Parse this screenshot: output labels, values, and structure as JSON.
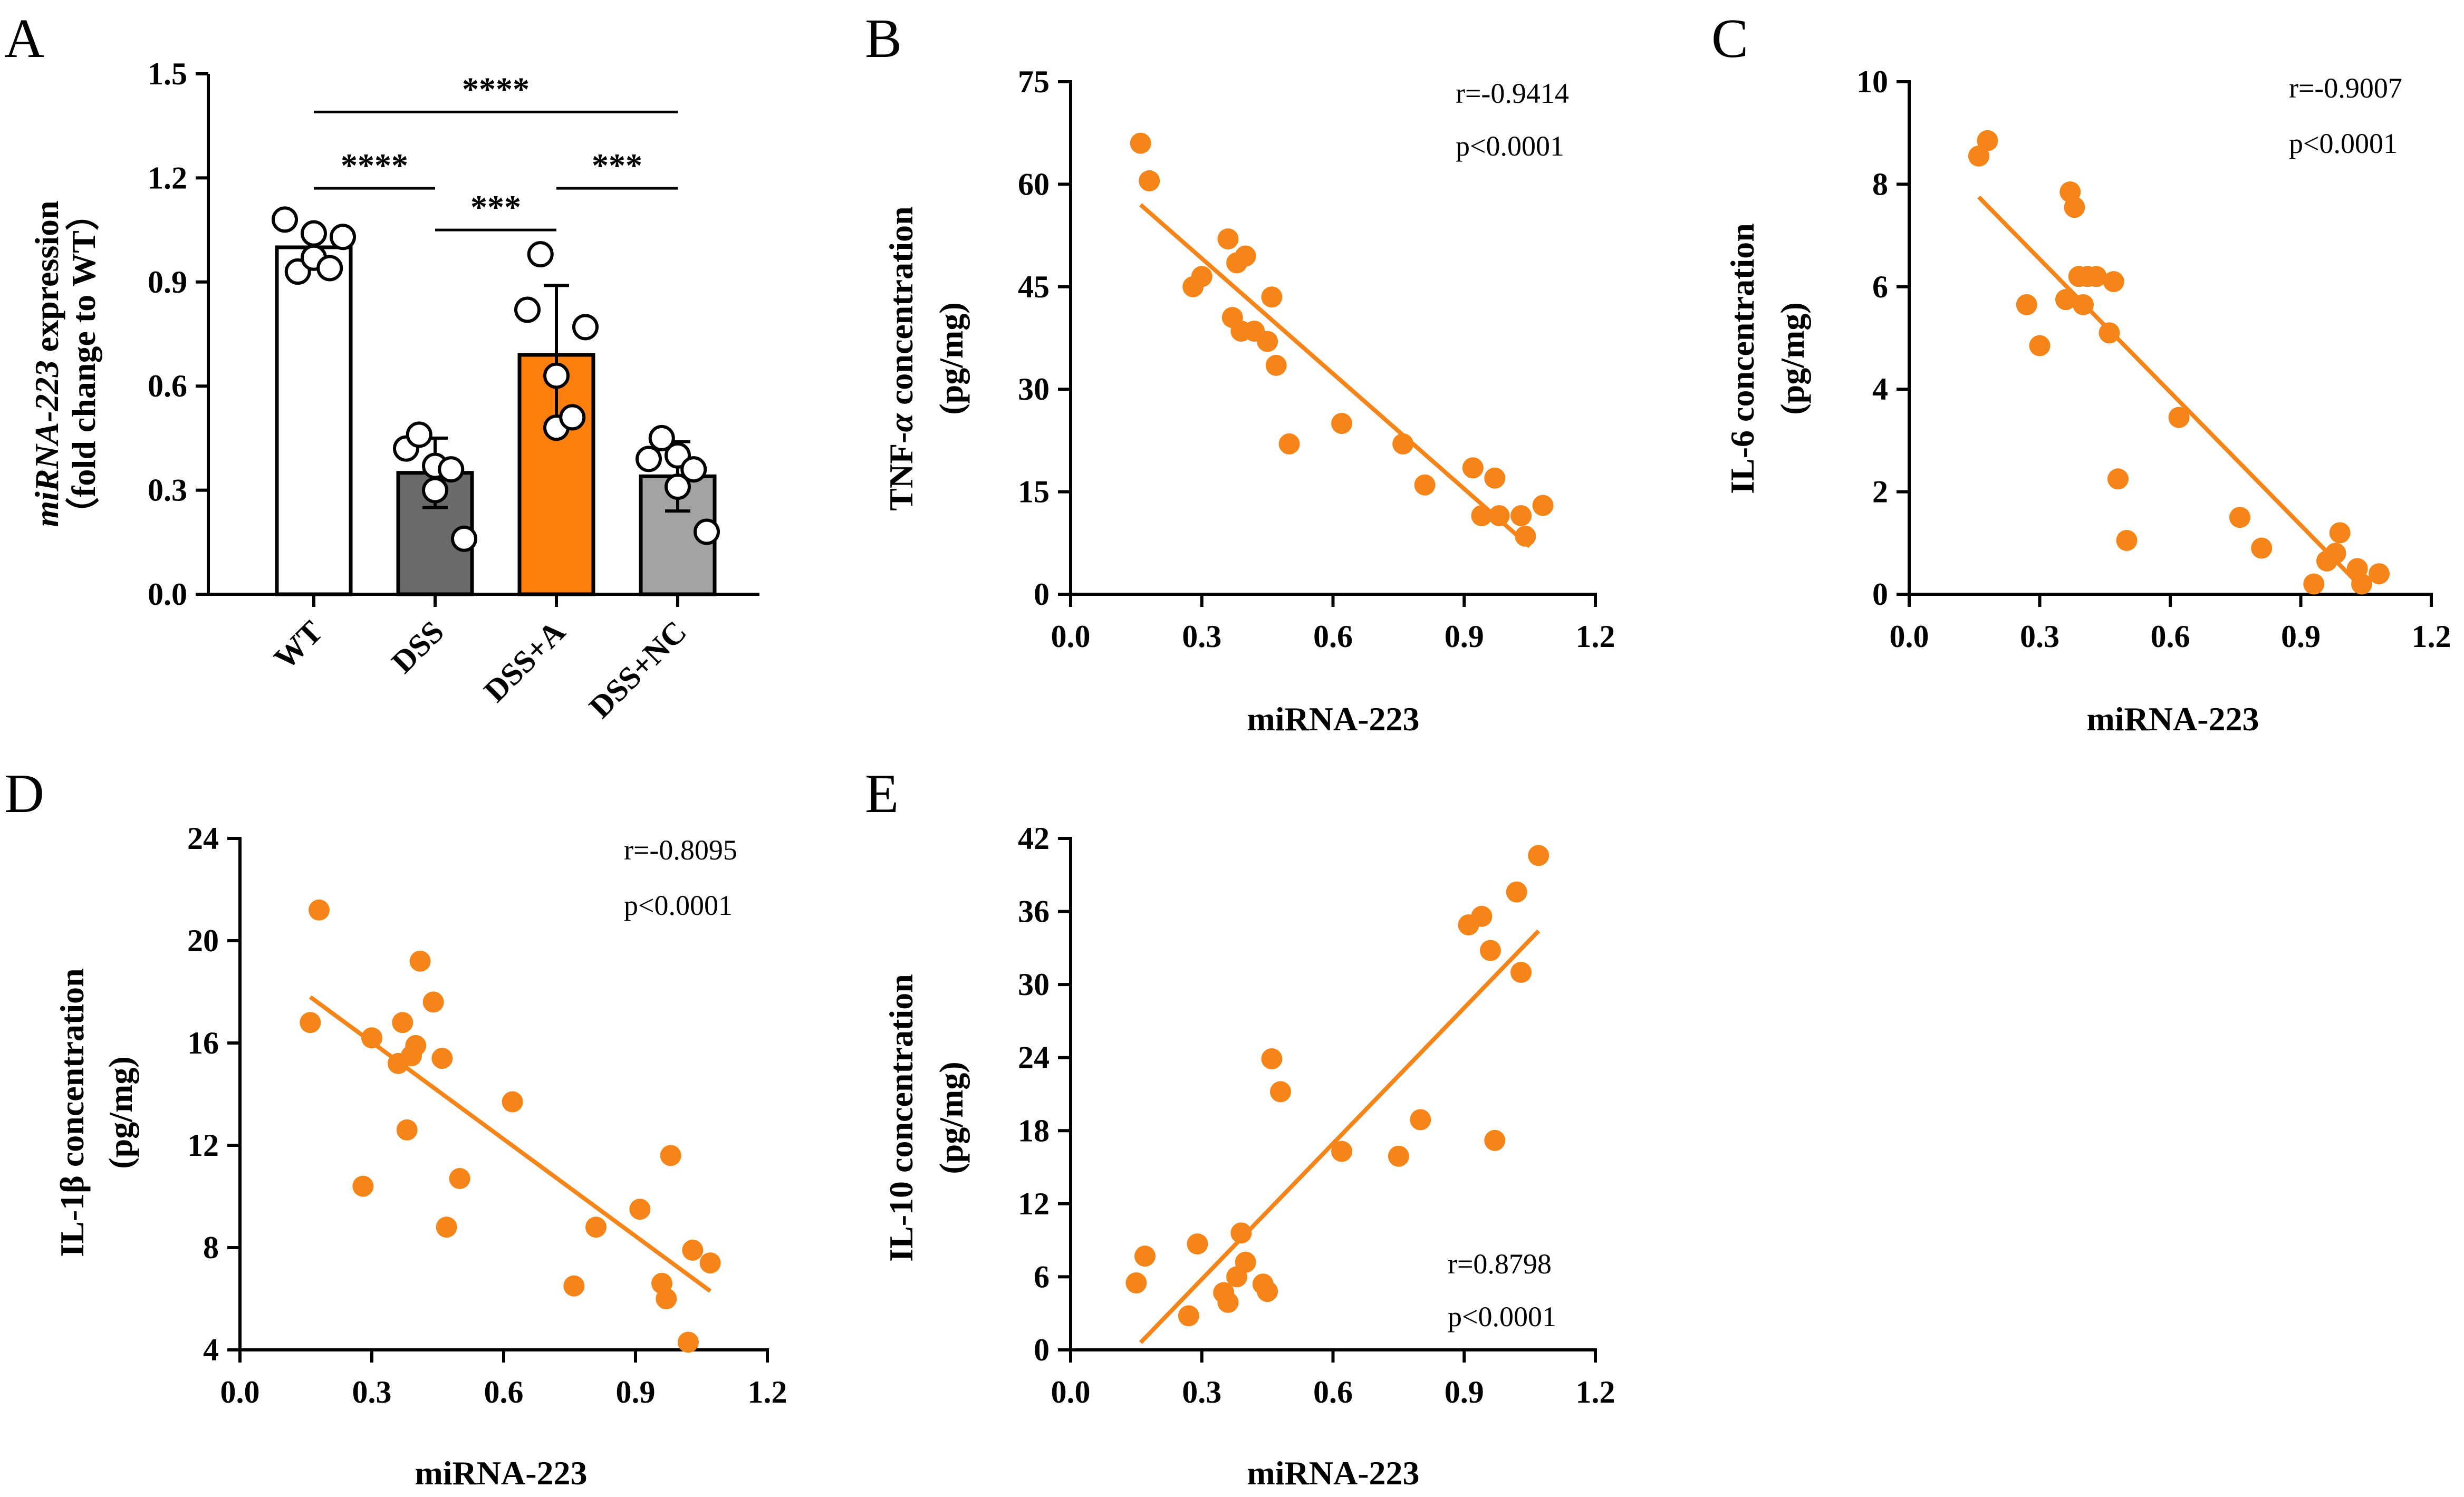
{
  "colors": {
    "accent_orange": "#f58518",
    "bar_wt": "#ffffff",
    "bar_dss": "#6b6b6b",
    "bar_dssa": "#ff7f0e",
    "bar_dssnc": "#a3a3a3",
    "axis": "#000000"
  },
  "chart_data": [
    {
      "id": "A",
      "type": "bar",
      "panel_label": "A",
      "ylabel_line1_italic": "miRNA-223",
      "ylabel_line1_rest": " expression",
      "ylabel_line2": "（fold change to WT）",
      "ylim": [
        0,
        1.5
      ],
      "yticks": [
        "0.0",
        "0.3",
        "0.6",
        "0.9",
        "1.2",
        "1.5"
      ],
      "yticks_values": [
        0,
        0.3,
        0.6,
        0.9,
        1.2,
        1.5
      ],
      "categories": [
        "WT",
        "DSS",
        "DSS+A",
        "DSS+NC"
      ],
      "values": [
        1.0,
        0.35,
        0.69,
        0.34
      ],
      "errors": [
        0.035,
        0.1,
        0.2,
        0.1
      ],
      "points": [
        [
          1.08,
          0.93,
          0.97,
          1.04,
          1.03,
          0.94
        ],
        [
          0.42,
          0.46,
          0.3,
          0.37,
          0.16,
          0.36
        ],
        [
          0.82,
          0.98,
          0.48,
          0.63,
          0.77,
          0.51
        ],
        [
          0.39,
          0.45,
          0.4,
          0.31,
          0.18,
          0.36
        ]
      ],
      "bar_colors": [
        "#ffffff",
        "#6b6b6b",
        "#ff7f0e",
        "#a3a3a3"
      ],
      "comparisons": [
        {
          "from": 0,
          "to": 3,
          "y": 1.39,
          "label": "****"
        },
        {
          "from": 0,
          "to": 1,
          "y": 1.17,
          "label": "****"
        },
        {
          "from": 1,
          "to": 2,
          "y": 1.05,
          "label": "***"
        },
        {
          "from": 2,
          "to": 3,
          "y": 1.17,
          "label": "***"
        }
      ]
    },
    {
      "id": "B",
      "type": "scatter",
      "panel_label": "B",
      "xlabel": "miRNA-223",
      "ylabel_line1_pre": "TNF-",
      "ylabel_line1_italic": "α",
      "ylabel_line1_post": " concentration",
      "ylabel_line2": "(pg/mg)",
      "xlim": [
        0,
        1.2
      ],
      "ylim": [
        0,
        75
      ],
      "xticks": [
        "0.0",
        "0.3",
        "0.6",
        "0.9",
        "1.2"
      ],
      "xticks_values": [
        0,
        0.3,
        0.6,
        0.9,
        1.2
      ],
      "yticks": [
        "0",
        "15",
        "30",
        "45",
        "60",
        "75"
      ],
      "yticks_values": [
        0,
        15,
        30,
        45,
        60,
        75
      ],
      "x": [
        0.16,
        0.18,
        0.28,
        0.3,
        0.36,
        0.37,
        0.38,
        0.39,
        0.4,
        0.42,
        0.45,
        0.46,
        0.47,
        0.5,
        0.62,
        0.76,
        0.81,
        0.92,
        0.94,
        0.97,
        0.98,
        1.03,
        1.04,
        1.08
      ],
      "y": [
        66,
        60.5,
        45,
        46.5,
        52,
        40.5,
        48.5,
        38.5,
        49.5,
        38.5,
        37,
        43.5,
        33.5,
        22,
        25,
        22,
        16,
        18.5,
        11.5,
        17,
        11.5,
        11.5,
        8.5,
        13
      ],
      "fit": [
        [
          0.16,
          57
        ],
        [
          1.05,
          7
        ]
      ],
      "r_text": "r=-0.9414",
      "p_text": "p<0.0001"
    },
    {
      "id": "C",
      "type": "scatter",
      "panel_label": "C",
      "xlabel": "miRNA-223",
      "ylabel_line1": "IL-6 concentration",
      "ylabel_line2": "(pg/mg)",
      "xlim": [
        0,
        1.2
      ],
      "ylim": [
        0,
        10
      ],
      "xticks": [
        "0.0",
        "0.3",
        "0.6",
        "0.9",
        "1.2"
      ],
      "xticks_values": [
        0,
        0.3,
        0.6,
        0.9,
        1.2
      ],
      "yticks": [
        "0",
        "2",
        "4",
        "6",
        "8",
        "10"
      ],
      "yticks_values": [
        0,
        2,
        4,
        6,
        8,
        10
      ],
      "x": [
        0.16,
        0.18,
        0.27,
        0.3,
        0.36,
        0.37,
        0.38,
        0.39,
        0.4,
        0.41,
        0.43,
        0.46,
        0.47,
        0.48,
        0.5,
        0.62,
        0.76,
        0.81,
        0.93,
        0.96,
        0.98,
        0.99,
        1.03,
        1.04,
        1.08
      ],
      "y": [
        8.55,
        8.85,
        5.65,
        4.85,
        5.75,
        7.85,
        7.55,
        6.2,
        5.65,
        6.2,
        6.2,
        5.1,
        6.1,
        2.25,
        1.05,
        3.45,
        1.5,
        0.9,
        0.2,
        0.65,
        0.8,
        1.2,
        0.5,
        0.2,
        0.4
      ],
      "fit": [
        [
          0.16,
          7.75
        ],
        [
          1.05,
          0.05
        ]
      ],
      "r_text": "r=-0.9007",
      "p_text": "p<0.0001"
    },
    {
      "id": "D",
      "type": "scatter",
      "panel_label": "D",
      "xlabel": "miRNA-223",
      "ylabel_line1": "IL-1β concentration",
      "ylabel_line2": "(pg/mg)",
      "xlim": [
        0,
        1.2
      ],
      "ylim": [
        4,
        24
      ],
      "xticks": [
        "0.0",
        "0.3",
        "0.6",
        "0.9",
        "1.2"
      ],
      "xticks_values": [
        0,
        0.3,
        0.6,
        0.9,
        1.2
      ],
      "yticks": [
        "4",
        "8",
        "12",
        "16",
        "20",
        "24"
      ],
      "yticks_values": [
        4,
        8,
        12,
        16,
        20,
        24
      ],
      "x": [
        0.16,
        0.18,
        0.28,
        0.3,
        0.36,
        0.37,
        0.38,
        0.39,
        0.4,
        0.41,
        0.44,
        0.46,
        0.47,
        0.5,
        0.62,
        0.76,
        0.81,
        0.91,
        0.96,
        0.97,
        0.98,
        1.02,
        1.03,
        1.07
      ],
      "y": [
        16.8,
        21.2,
        10.4,
        16.2,
        15.2,
        16.8,
        12.6,
        15.5,
        15.9,
        19.2,
        17.6,
        15.4,
        8.8,
        10.7,
        13.7,
        6.5,
        8.8,
        9.5,
        6.6,
        6.0,
        11.6,
        4.3,
        7.9,
        7.4
      ],
      "fit": [
        [
          0.16,
          17.8
        ],
        [
          1.07,
          6.3
        ]
      ],
      "r_text": "r=-0.8095",
      "p_text": "p<0.0001"
    },
    {
      "id": "E",
      "type": "scatter",
      "panel_label": "E",
      "xlabel": "miRNA-223",
      "ylabel_line1": "IL-10 concentration",
      "ylabel_line2": "(pg/mg)",
      "xlim": [
        0,
        1.2
      ],
      "ylim": [
        0,
        42
      ],
      "xticks": [
        "0.0",
        "0.3",
        "0.6",
        "0.9",
        "1.2"
      ],
      "xticks_values": [
        0,
        0.3,
        0.6,
        0.9,
        1.2
      ],
      "yticks": [
        "0",
        "6",
        "12",
        "18",
        "24",
        "30",
        "36",
        "42"
      ],
      "yticks_values": [
        0,
        6,
        12,
        18,
        24,
        30,
        36,
        42
      ],
      "x": [
        0.15,
        0.17,
        0.27,
        0.29,
        0.35,
        0.36,
        0.38,
        0.39,
        0.4,
        0.44,
        0.45,
        0.46,
        0.48,
        0.62,
        0.75,
        0.8,
        0.91,
        0.94,
        0.96,
        0.97,
        1.02,
        1.03,
        1.07
      ],
      "y": [
        5.5,
        7.7,
        2.8,
        8.7,
        4.7,
        3.9,
        6.0,
        9.6,
        7.2,
        5.4,
        4.8,
        23.9,
        21.2,
        16.3,
        15.9,
        18.9,
        34.9,
        35.6,
        32.8,
        17.2,
        37.6,
        31.0,
        40.6
      ],
      "fit": [
        [
          0.16,
          0.6
        ],
        [
          1.07,
          34.4
        ]
      ],
      "r_text": "r=0.8798",
      "p_text": "p<0.0001"
    }
  ]
}
